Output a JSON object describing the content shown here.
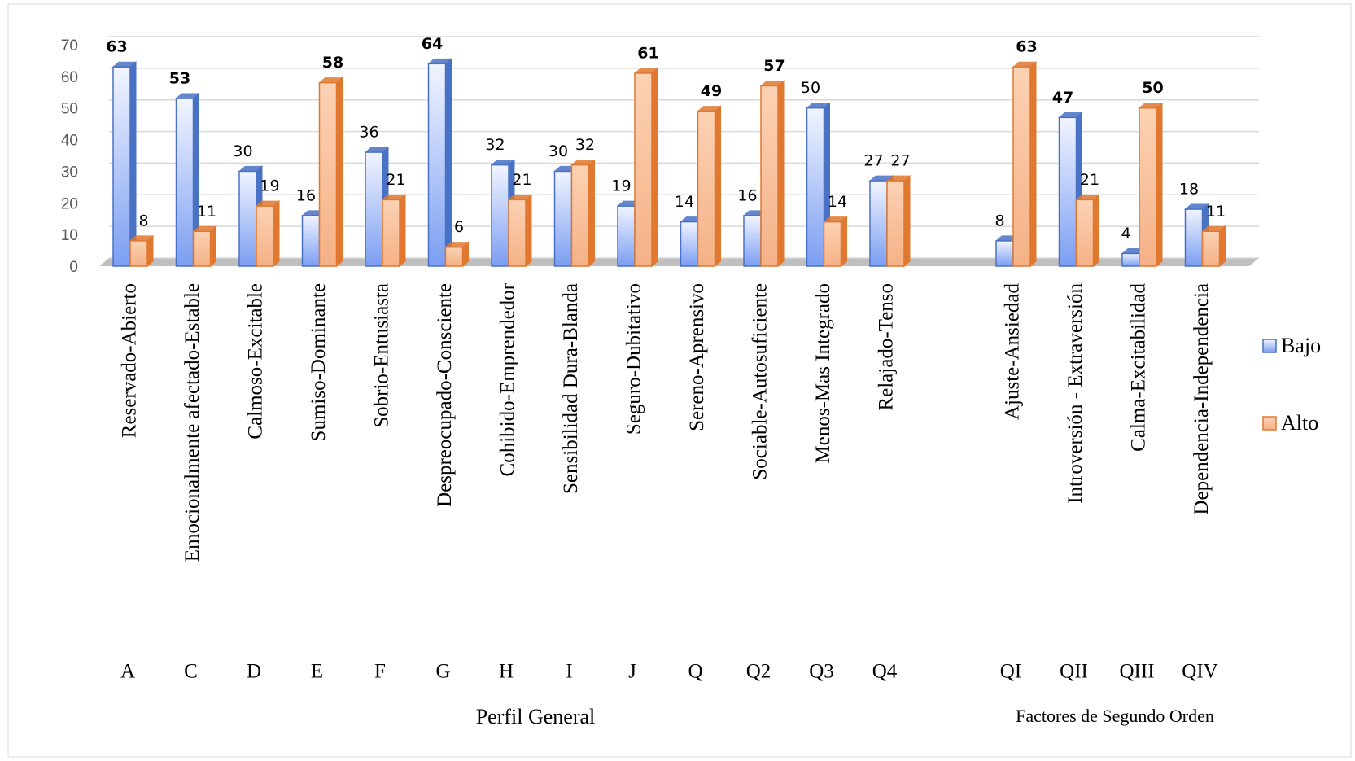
{
  "chart_data": {
    "type": "bar3d",
    "categories": [
      "Reservado-Abierto",
      "Emocionalmente afectado-Estable",
      "Calmoso-Excitable",
      "Sumiso-Dominante",
      "Sobrio-Entusiasta",
      "Despreocupado-Consciente",
      "Cohibido-Emprendedor",
      "Sensibilidad Dura-Blanda",
      "Seguro-Dubitativo",
      "Sereno-Aprensivo",
      "Sociable-Autosuficiente",
      "Menos-Mas Integrado",
      "Relajado-Tenso",
      "Ajuste-Ansiedad",
      "Introversión - Extraversión",
      "Calma-Excitabilidad",
      "Dependencia-Independencia"
    ],
    "codes": [
      "A",
      "C",
      "D",
      "E",
      "F",
      "G",
      "H",
      "I",
      "J",
      "Q",
      "Q2",
      "Q3",
      "Q4",
      "QI",
      "QII",
      "QIII",
      "QIV"
    ],
    "groups": [
      {
        "label": "Perfil General"
      },
      {
        "label": "Factores de Segundo Orden"
      }
    ],
    "series": [
      {
        "name": "Bajo",
        "color": "#4a72c4",
        "values": [
          63,
          53,
          30,
          16,
          36,
          64,
          32,
          30,
          19,
          14,
          16,
          50,
          27,
          8,
          47,
          4,
          18
        ],
        "value_label_bold": [
          true,
          true,
          false,
          false,
          false,
          true,
          false,
          false,
          false,
          false,
          false,
          false,
          false,
          false,
          true,
          false,
          false
        ]
      },
      {
        "name": "Alto",
        "color": "#e07830",
        "values": [
          8,
          11,
          19,
          58,
          21,
          6,
          21,
          32,
          61,
          49,
          57,
          14,
          27,
          63,
          21,
          50,
          11
        ],
        "value_label_bold": [
          false,
          false,
          false,
          true,
          false,
          false,
          false,
          false,
          true,
          true,
          true,
          false,
          false,
          true,
          false,
          true,
          false
        ]
      }
    ],
    "ylim": [
      0,
      70
    ],
    "yticks": [
      0,
      10,
      20,
      30,
      40,
      50,
      60,
      70
    ],
    "grid": true,
    "legend": "right"
  }
}
